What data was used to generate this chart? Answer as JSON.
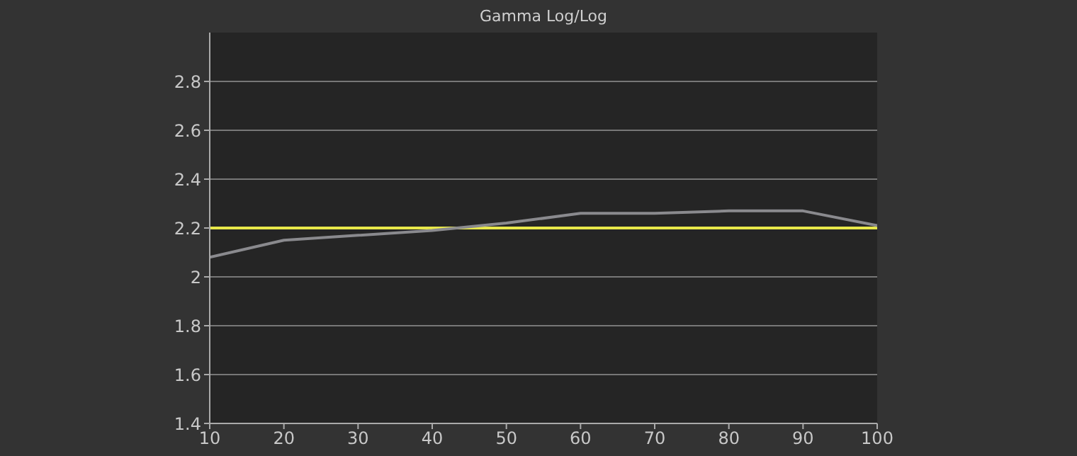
{
  "chart_data": {
    "type": "line",
    "title": "Gamma Log/Log",
    "x": [
      10,
      20,
      30,
      40,
      50,
      60,
      70,
      80,
      90,
      100
    ],
    "series": [
      {
        "color": "#8a8a8e",
        "values": [
          2.08,
          2.15,
          2.17,
          2.19,
          2.22,
          2.26,
          2.26,
          2.27,
          2.27,
          2.21
        ]
      }
    ],
    "xlim": [
      10,
      100
    ],
    "xticks": [
      10,
      20,
      30,
      40,
      50,
      60,
      70,
      80,
      90,
      100
    ],
    "ylim": [
      1.4,
      3.0
    ],
    "yticks": [
      1.4,
      1.6,
      1.8,
      2,
      2.2,
      2.4,
      2.6,
      2.8
    ],
    "ref_lines": [
      {
        "axis": "y",
        "value": 2.2,
        "color": "#e8e84a"
      }
    ],
    "grid": "y",
    "marker": "none",
    "line_style": "solid"
  }
}
